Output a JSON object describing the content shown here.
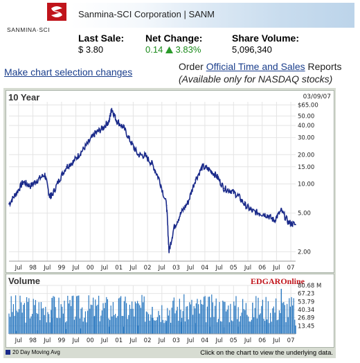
{
  "header": {
    "logo_text": "SANMINA·SCI",
    "company": "Sanmina-SCI Corporation | SANM"
  },
  "quote": {
    "last_sale_label": "Last Sale:",
    "last_sale_value": "$ 3.80",
    "net_change_label": "Net Change:",
    "net_change_value": "0.14",
    "net_change_pct": "3.83%",
    "volume_label": "Share Volume:",
    "volume_value": "5,096,340"
  },
  "links": {
    "chart_changes": "Make chart selection changes",
    "order_prefix": "Order ",
    "official_time_sales": "Official Time and Sales",
    "order_suffix": " Reports",
    "nasdaq_note": "(Available only for NASDAQ stocks)"
  },
  "chart_data": [
    {
      "type": "line",
      "title": "10 Year",
      "date": "03/09/07",
      "yscale": "log",
      "ylim": [
        1.6,
        70
      ],
      "ytick_labels": [
        "$65.00",
        "50.00",
        "40.00",
        "30.00",
        "20.00",
        "15.00",
        "10.00",
        "5.00",
        "2.00"
      ],
      "yticks": [
        65,
        50,
        40,
        30,
        20,
        15,
        10,
        5,
        2
      ],
      "xtick_labels": [
        "Jul",
        "98",
        "Jul",
        "99",
        "Jul",
        "00",
        "Jul",
        "01",
        "Jul",
        "02",
        "Jul",
        "03",
        "Jul",
        "04",
        "Jul",
        "05",
        "Jul",
        "06",
        "Jul",
        "07"
      ],
      "x_range": [
        "1997-03",
        "2007-03"
      ],
      "series": [
        {
          "name": "",
          "color": "#1a2a8a",
          "x": [
            "1997-03",
            "1997-06",
            "1997-09",
            "1997-12",
            "1998-03",
            "1998-06",
            "1998-08",
            "1998-09",
            "1998-12",
            "1999-03",
            "1999-06",
            "1999-09",
            "1999-12",
            "2000-03",
            "2000-06",
            "2000-09",
            "2000-10",
            "2000-12",
            "2001-03",
            "2001-06",
            "2001-09",
            "2001-12",
            "2002-03",
            "2002-06",
            "2002-09",
            "2002-10",
            "2002-12",
            "2003-03",
            "2003-06",
            "2003-09",
            "2003-12",
            "2004-03",
            "2004-06",
            "2004-09",
            "2004-12",
            "2005-03",
            "2005-06",
            "2005-09",
            "2005-12",
            "2006-03",
            "2006-06",
            "2006-09",
            "2006-12",
            "2007-03"
          ],
          "y": [
            6.2,
            8.0,
            10.5,
            9.5,
            11.0,
            12.5,
            7.5,
            7.6,
            11.0,
            15.0,
            17.0,
            21.0,
            26.0,
            33.0,
            37.0,
            45.0,
            60.0,
            45.0,
            38.0,
            27.0,
            20.0,
            19.5,
            16.0,
            11.0,
            6.0,
            2.0,
            3.5,
            5.0,
            6.5,
            11.0,
            15.0,
            14.0,
            12.0,
            9.0,
            8.5,
            7.5,
            6.0,
            5.2,
            5.0,
            4.8,
            4.2,
            5.3,
            4.0,
            3.8
          ]
        }
      ]
    },
    {
      "type": "bar",
      "title": "Volume",
      "unit": "M",
      "ylim": [
        0,
        80.68
      ],
      "ytick_labels": [
        "80.68 M",
        "67.23",
        "53.79",
        "40.34",
        "26.89",
        "13.45"
      ],
      "yticks": [
        80.68,
        67.23,
        53.79,
        40.34,
        26.89,
        13.45
      ],
      "xtick_labels": [
        "Jul",
        "98",
        "Jul",
        "99",
        "Jul",
        "00",
        "Jul",
        "01",
        "Jul",
        "02",
        "Jul",
        "03",
        "Jul",
        "04",
        "Jul",
        "05",
        "Jul",
        "06",
        "Jul",
        "07"
      ],
      "source_logo": "EDGAROnline",
      "legend": "20 Day Moving Avg",
      "color": "#2a78c0",
      "x": [
        "1997-06",
        "1998-03",
        "1998-09",
        "1999-03",
        "1999-09",
        "2000-03",
        "2000-09",
        "2001-03",
        "2001-09",
        "2002-03",
        "2002-09",
        "2003-03",
        "2003-09",
        "2004-03",
        "2004-09",
        "2005-03",
        "2005-09",
        "2006-03",
        "2006-09",
        "2007-03"
      ],
      "values": [
        5,
        6,
        60,
        8,
        9,
        30,
        12,
        12,
        14,
        45,
        22,
        20,
        18,
        12,
        11,
        12,
        52,
        24,
        75,
        14
      ]
    }
  ],
  "footer": {
    "note": "Click on the chart to view the underlying data."
  }
}
